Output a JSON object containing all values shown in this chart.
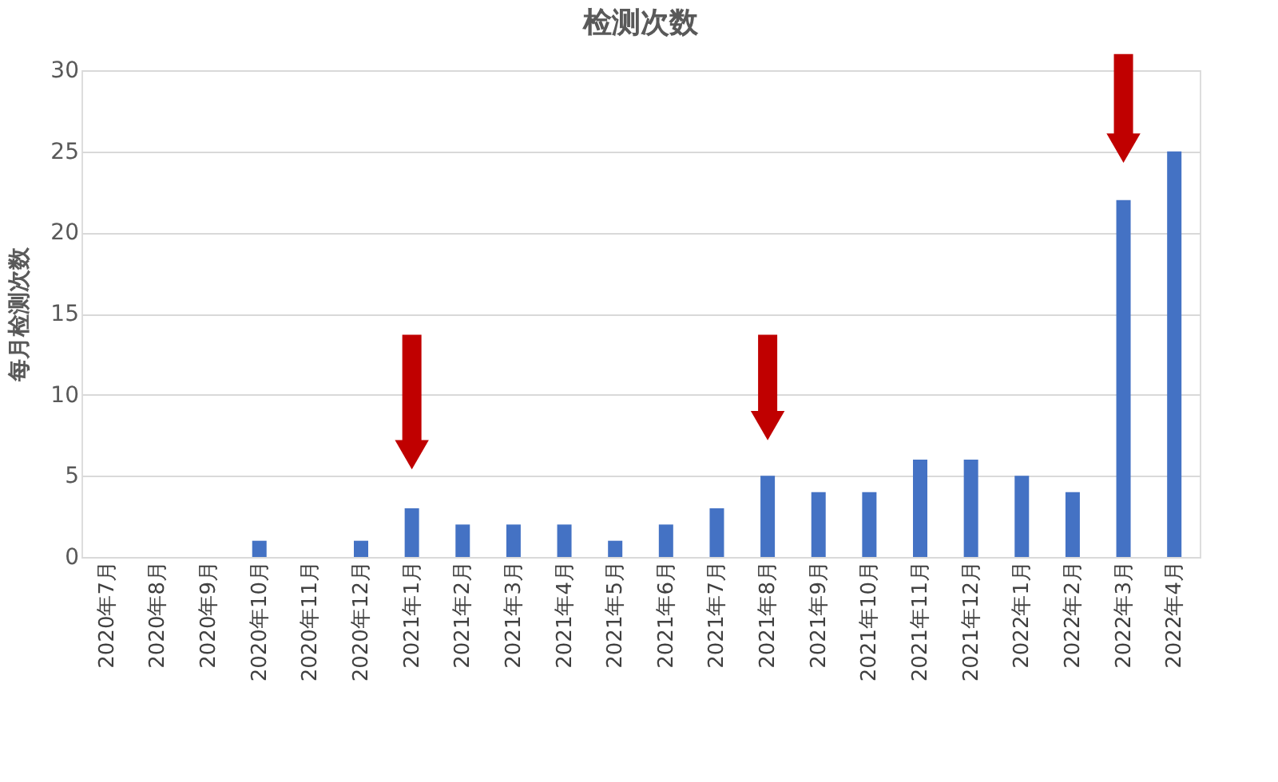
{
  "chart_data": {
    "type": "bar",
    "title": "检测次数",
    "ylabel": "每月检测次数",
    "categories": [
      "2020年7月",
      "2020年8月",
      "2020年9月",
      "2020年10月",
      "2020年11月",
      "2020年12月",
      "2021年1月",
      "2021年2月",
      "2021年3月",
      "2021年4月",
      "2021年5月",
      "2021年6月",
      "2021年7月",
      "2021年8月",
      "2021年9月",
      "2021年10月",
      "2021年11月",
      "2021年12月",
      "2022年1月",
      "2022年2月",
      "2022年3月",
      "2022年4月"
    ],
    "values": [
      0,
      0,
      0,
      1,
      0,
      1,
      3,
      2,
      2,
      2,
      1,
      2,
      3,
      5,
      4,
      4,
      6,
      6,
      5,
      4,
      22,
      25
    ],
    "color": "#4472c4",
    "ylim": [
      0,
      30
    ],
    "yticks": [
      0,
      5,
      10,
      15,
      20,
      25,
      30
    ],
    "grid": "y"
  }
}
